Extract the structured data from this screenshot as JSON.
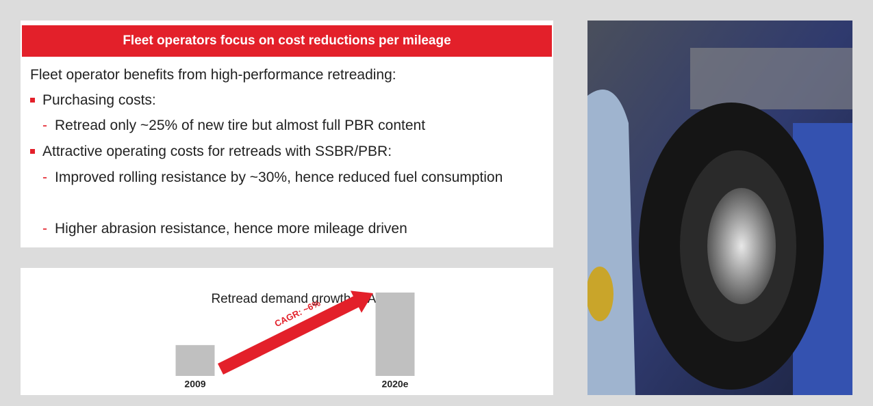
{
  "header": {
    "title": "Fleet operators focus on cost reductions per mileage"
  },
  "intro": "Fleet operator benefits from high-performance retreading:",
  "bullets": [
    {
      "text": "Purchasing costs:",
      "subs": [
        "Retread only ~25% of new tire but almost full PBR content"
      ]
    },
    {
      "text": "Attractive operating costs for retreads with SSBR/PBR:",
      "subs": [
        "Improved rolling resistance by ~30%, hence reduced fuel consumption",
        "Higher abrasion resistance, hence more mileage driven"
      ]
    }
  ],
  "chart_data": {
    "type": "bar",
    "title": "Retread demand growth in Asia",
    "categories": [
      "2009",
      "2020e"
    ],
    "values": [
      37,
      100
    ],
    "color": "#c0c0c0",
    "ylim": [
      0,
      100
    ],
    "annotation": "CAGR: ~6%",
    "annotation_color": "#e3202a"
  }
}
